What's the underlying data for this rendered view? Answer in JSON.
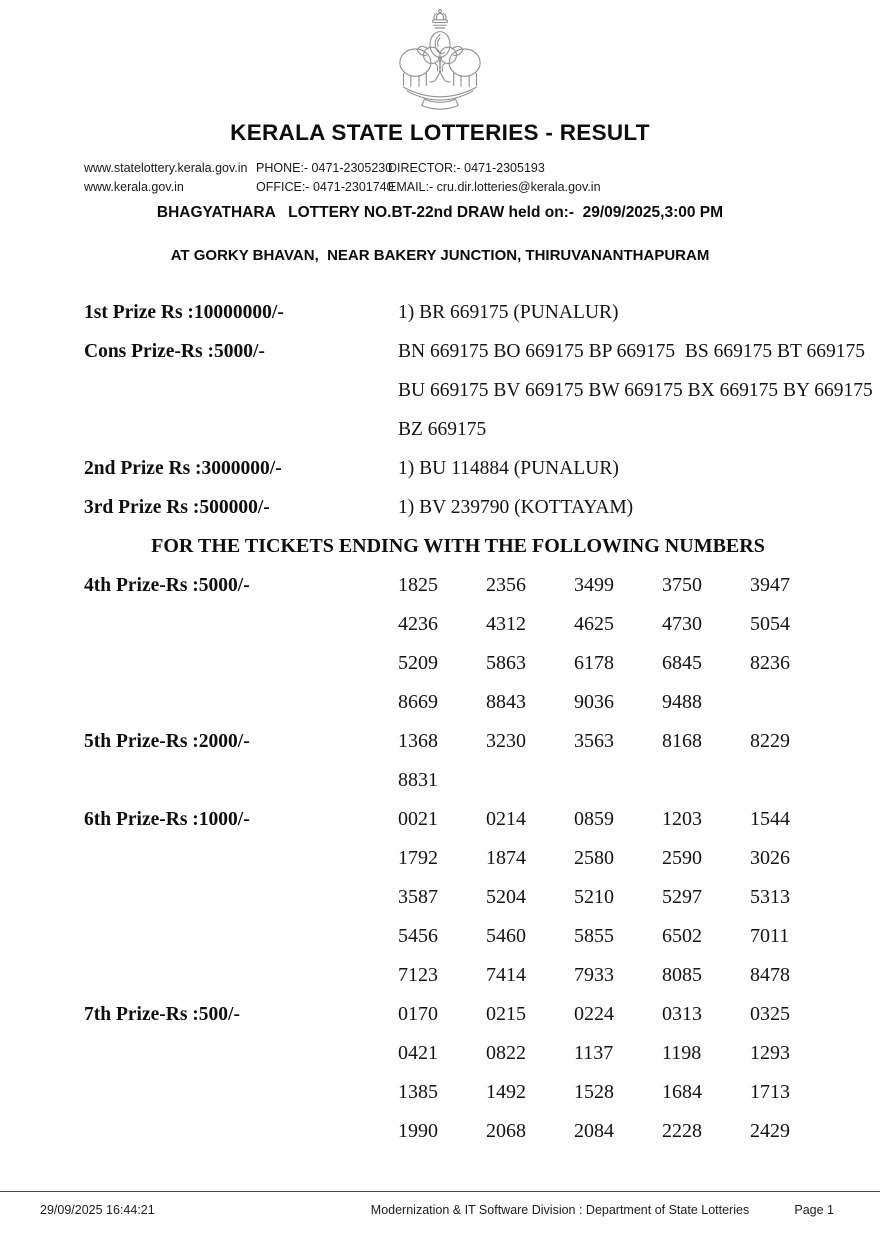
{
  "header": {
    "title": "KERALA STATE LOTTERIES - RESULT",
    "contact": {
      "website1": "www.statelottery.kerala.gov.in",
      "website2": "www.kerala.gov.in",
      "phone": "PHONE:- 0471-2305230",
      "office": "OFFICE:- 0471-2301740",
      "director": "DIRECTOR:- 0471-2305193",
      "email": "EMAIL:- cru.dir.lotteries@kerala.gov.in"
    },
    "draw_line": "BHAGYATHARA   LOTTERY NO.BT-22nd DRAW held on:-  29/09/2025,3:00 PM",
    "venue_line": "AT GORKY BHAVAN,  NEAR BAKERY JUNCTION, THIRUVANANTHAPURAM"
  },
  "prizes": [
    {
      "label": "1st Prize Rs :10000000/-",
      "lines": [
        "1) BR 669175 (PUNALUR)"
      ]
    },
    {
      "label": "Cons Prize-Rs :5000/-",
      "lines": [
        "BN 669175 BO 669175 BP 669175  BS 669175 BT 669175",
        "BU 669175 BV 669175 BW 669175 BX 669175 BY 669175",
        "BZ 669175"
      ]
    },
    {
      "label": "2nd Prize Rs :3000000/-",
      "lines": [
        "1) BU 114884 (PUNALUR)"
      ]
    },
    {
      "label": "3rd Prize Rs :500000/-",
      "lines": [
        "1) BV 239790 (KOTTAYAM)"
      ]
    }
  ],
  "section_heading": "FOR THE TICKETS ENDING WITH THE FOLLOWING NUMBERS",
  "ending_prizes": [
    {
      "label": "4th Prize-Rs :5000/-",
      "numbers": [
        [
          "1825",
          "2356",
          "3499",
          "3750",
          "3947"
        ],
        [
          "4236",
          "4312",
          "4625",
          "4730",
          "5054"
        ],
        [
          "5209",
          "5863",
          "6178",
          "6845",
          "8236"
        ],
        [
          "8669",
          "8843",
          "9036",
          "9488"
        ]
      ]
    },
    {
      "label": "5th Prize-Rs :2000/-",
      "numbers": [
        [
          "1368",
          "3230",
          "3563",
          "8168",
          "8229"
        ],
        [
          "8831"
        ]
      ]
    },
    {
      "label": "6th Prize-Rs :1000/-",
      "numbers": [
        [
          "0021",
          "0214",
          "0859",
          "1203",
          "1544"
        ],
        [
          "1792",
          "1874",
          "2580",
          "2590",
          "3026"
        ],
        [
          "3587",
          "5204",
          "5210",
          "5297",
          "5313"
        ],
        [
          "5456",
          "5460",
          "5855",
          "6502",
          "7011"
        ],
        [
          "7123",
          "7414",
          "7933",
          "8085",
          "8478"
        ]
      ]
    },
    {
      "label": "7th Prize-Rs :500/-",
      "numbers": [
        [
          "0170",
          "0215",
          "0224",
          "0313",
          "0325"
        ],
        [
          "0421",
          "0822",
          "1137",
          "1198",
          "1293"
        ],
        [
          "1385",
          "1492",
          "1528",
          "1684",
          "1713"
        ],
        [
          "1990",
          "2068",
          "2084",
          "2228",
          "2429"
        ]
      ]
    }
  ],
  "footer": {
    "timestamp": "29/09/2025 16:44:21",
    "division": "Modernization & IT Software Division : Department of State Lotteries",
    "page": "Page 1"
  }
}
